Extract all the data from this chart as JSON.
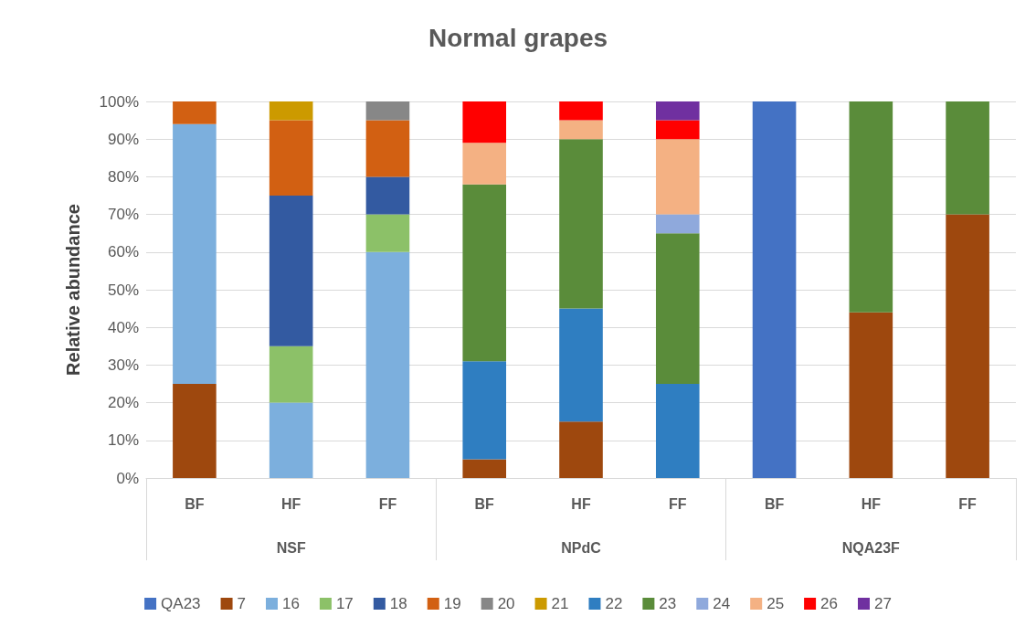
{
  "chart_data": {
    "type": "bar",
    "stacked": true,
    "title": "Normal grapes",
    "ylabel": "Relative abundance",
    "categories": [
      "BF",
      "HF",
      "FF",
      "BF",
      "HF",
      "FF",
      "BF",
      "HF",
      "FF"
    ],
    "annotations": [
      "NSF",
      "NPdC",
      "NQA23F"
    ],
    "series": [
      {
        "name": "QA23",
        "color": "#4472c4",
        "values": [
          null,
          null,
          null,
          null,
          null,
          null,
          100,
          null,
          null
        ]
      },
      {
        "name": "7",
        "color": "#9e480e",
        "values": [
          25,
          null,
          null,
          5,
          15,
          null,
          null,
          44,
          70
        ]
      },
      {
        "name": "16",
        "color": "#7cafdd",
        "values": [
          69,
          20,
          60,
          null,
          null,
          null,
          null,
          null,
          null
        ]
      },
      {
        "name": "17",
        "color": "#8cc168",
        "values": [
          null,
          15,
          10,
          null,
          null,
          null,
          null,
          null,
          null
        ]
      },
      {
        "name": "18",
        "color": "#335aa1",
        "values": [
          null,
          40,
          10,
          null,
          null,
          null,
          null,
          null,
          null
        ]
      },
      {
        "name": "19",
        "color": "#d26012",
        "values": [
          6,
          20,
          15,
          null,
          null,
          null,
          null,
          null,
          null
        ]
      },
      {
        "name": "20",
        "color": "#878787",
        "values": [
          null,
          null,
          5,
          null,
          null,
          null,
          null,
          null,
          null
        ]
      },
      {
        "name": "21",
        "color": "#cc9a00",
        "values": [
          null,
          5,
          null,
          null,
          null,
          null,
          null,
          null,
          null
        ]
      },
      {
        "name": "22",
        "color": "#2f7ec1",
        "values": [
          null,
          null,
          null,
          26,
          30,
          25,
          null,
          null,
          null
        ]
      },
      {
        "name": "23",
        "color": "#5a8c3a",
        "values": [
          null,
          null,
          null,
          47,
          45,
          40,
          null,
          56,
          30
        ]
      },
      {
        "name": "24",
        "color": "#8fa9dc",
        "values": [
          null,
          null,
          null,
          null,
          null,
          5,
          null,
          null,
          null
        ]
      },
      {
        "name": "25",
        "color": "#f4b183",
        "values": [
          null,
          null,
          null,
          11,
          5,
          20,
          null,
          null,
          null
        ]
      },
      {
        "name": "26",
        "color": "#ff0000",
        "values": [
          null,
          null,
          null,
          11,
          5,
          5,
          null,
          null,
          null
        ]
      },
      {
        "name": "27",
        "color": "#7030a0",
        "values": [
          null,
          null,
          null,
          null,
          null,
          5,
          null,
          null,
          null
        ]
      }
    ],
    "ylim": [
      0,
      100
    ],
    "yticks": [
      {
        "value": 0,
        "label": "0%"
      },
      {
        "value": 10,
        "label": "10%"
      },
      {
        "value": 20,
        "label": "20%"
      },
      {
        "value": 30,
        "label": "30%"
      },
      {
        "value": 40,
        "label": "40%"
      },
      {
        "value": 50,
        "label": "50%"
      },
      {
        "value": 60,
        "label": "60%"
      },
      {
        "value": 70,
        "label": "70%"
      },
      {
        "value": 80,
        "label": "80%"
      },
      {
        "value": 90,
        "label": "90%"
      },
      {
        "value": 100,
        "label": "100%"
      }
    ],
    "grid": "y",
    "legend": "bottom"
  }
}
